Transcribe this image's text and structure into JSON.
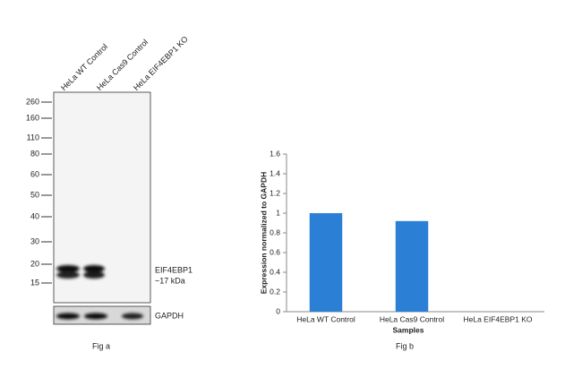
{
  "blot": {
    "lanes": [
      "HeLa WT Control",
      "HeLa Cas9 Control",
      "HeLa EIF4EBP1 KO"
    ],
    "markers": [
      260,
      160,
      110,
      80,
      60,
      50,
      40,
      30,
      20,
      15
    ],
    "target_label": "EIF4EBP1",
    "target_size": "~17 kDa",
    "loading_label": "GAPDH",
    "caption": "Fig a"
  },
  "chart_data": {
    "type": "bar",
    "categories": [
      "HeLa WT Control",
      "HeLa Cas9 Control",
      "HeLa EIF4EBP1 KO"
    ],
    "values": [
      1,
      0.92,
      0
    ],
    "color": "#2b80d6",
    "ylim": [
      0,
      1.6
    ],
    "yticks": [
      0,
      0.2,
      0.4,
      0.6,
      0.8,
      1,
      1.2,
      1.4,
      1.6
    ],
    "ylabel": "Expression normalized to GAPDH",
    "xlabel": "Samples",
    "grid": false,
    "caption": "Fig b"
  }
}
